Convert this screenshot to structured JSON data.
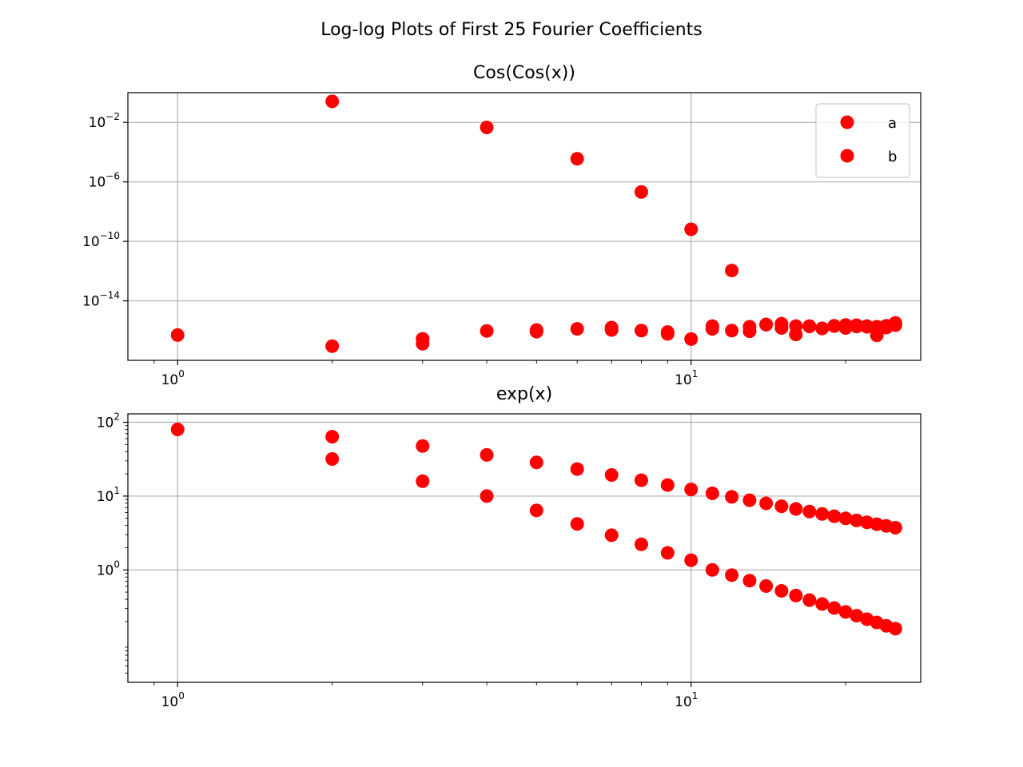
{
  "figure": {
    "suptitle": "Log-log Plots of First 25 Fourier Coefficients",
    "marker_color": "#ff0000"
  },
  "chart_data": [
    {
      "type": "scatter",
      "title": "Cos(Cos(x))",
      "xscale": "log",
      "yscale": "log",
      "xlim": [
        0.8,
        28
      ],
      "ylim": [
        1e-18,
        1
      ],
      "x_ticks": [
        {
          "base": "10",
          "exp": "0",
          "value": 1
        },
        {
          "base": "10",
          "exp": "1",
          "value": 10
        }
      ],
      "y_ticks": [
        {
          "base": "10",
          "exp": "−2",
          "value": 0.01
        },
        {
          "base": "10",
          "exp": "−6",
          "value": 1e-06
        },
        {
          "base": "10",
          "exp": "−10",
          "value": 1e-10
        },
        {
          "base": "10",
          "exp": "−14",
          "value": 1e-14
        }
      ],
      "grid": true,
      "legend": {
        "position": "top-right",
        "entries": [
          "a",
          "b"
        ]
      },
      "series": [
        {
          "name": "a",
          "x": [
            1,
            2,
            3,
            4,
            5,
            6,
            7,
            8,
            9,
            10,
            11,
            12,
            13,
            14,
            15,
            16,
            17,
            18,
            19,
            20,
            21,
            22,
            23,
            24,
            25
          ],
          "y": [
            5e-17,
            0.26,
            1.3e-17,
            0.0046,
            1.1e-16,
            3.6e-05,
            1.6e-16,
            2.1e-07,
            8e-17,
            6.5e-10,
            2e-16,
            1.1e-12,
            1.8e-16,
            2.5e-16,
            2.9e-16,
            2e-16,
            1.9e-16,
            1.4e-16,
            2.1e-16,
            2.4e-16,
            1.9e-16,
            1.8e-16,
            1.8e-16,
            2.1e-16,
            3.3e-16
          ]
        },
        {
          "name": "b",
          "x": [
            2,
            3,
            4,
            5,
            6,
            7,
            8,
            9,
            10,
            11,
            12,
            13,
            14,
            15,
            16,
            17,
            18,
            19,
            20,
            21,
            22,
            23,
            24,
            25
          ],
          "y": [
            9e-18,
            2.8e-17,
            9.5e-17,
            8.5e-17,
            1.3e-16,
            1.1e-16,
            1e-16,
            6e-17,
            2.7e-17,
            1.3e-16,
            1e-16,
            9e-17,
            2.6e-16,
            1.5e-16,
            5.5e-17,
            2e-16,
            1.4e-16,
            2e-16,
            1.5e-16,
            2.3e-16,
            2e-16,
            4.8e-17,
            1.6e-16,
            2.3e-16
          ]
        }
      ]
    },
    {
      "type": "scatter",
      "title": "exp(x)",
      "xscale": "log",
      "yscale": "log",
      "xlim": [
        0.8,
        28
      ],
      "ylim": [
        0.03,
        130
      ],
      "x_ticks": [
        {
          "base": "10",
          "exp": "0",
          "value": 1
        },
        {
          "base": "10",
          "exp": "1",
          "value": 10
        }
      ],
      "y_ticks": [
        {
          "base": "10",
          "exp": "2",
          "value": 100
        },
        {
          "base": "10",
          "exp": "1",
          "value": 10
        },
        {
          "base": "10",
          "exp": "0",
          "value": 1
        }
      ],
      "grid": true,
      "series": [
        {
          "x": [
            1,
            2,
            3,
            4,
            5,
            6,
            7,
            8,
            9,
            10,
            11,
            12,
            13,
            14,
            15,
            16,
            17,
            18,
            19,
            20,
            21,
            22,
            23,
            24,
            25
          ],
          "y": [
            80,
            63.7,
            47.7,
            36.1,
            28.6,
            23.2,
            19.3,
            16.4,
            14.1,
            12.3,
            10.9,
            9.77,
            8.79,
            7.98,
            7.29,
            6.69,
            6.18,
            5.73,
            5.34,
            4.99,
            4.68,
            4.41,
            4.16,
            3.94,
            3.73
          ]
        },
        {
          "x": [
            2,
            3,
            4,
            5,
            6,
            7,
            8,
            9,
            10,
            11,
            12,
            13,
            14,
            15,
            16,
            17,
            18,
            19,
            20,
            21,
            22,
            23,
            24,
            25
          ],
          "y": [
            31.8,
            15.9,
            10,
            6.4,
            4.2,
            2.95,
            2.22,
            1.7,
            1.35,
            1.0,
            0.85,
            0.715,
            0.605,
            0.52,
            0.45,
            0.39,
            0.345,
            0.305,
            0.27,
            0.24,
            0.215,
            0.194,
            0.175,
            0.16
          ]
        }
      ]
    }
  ]
}
